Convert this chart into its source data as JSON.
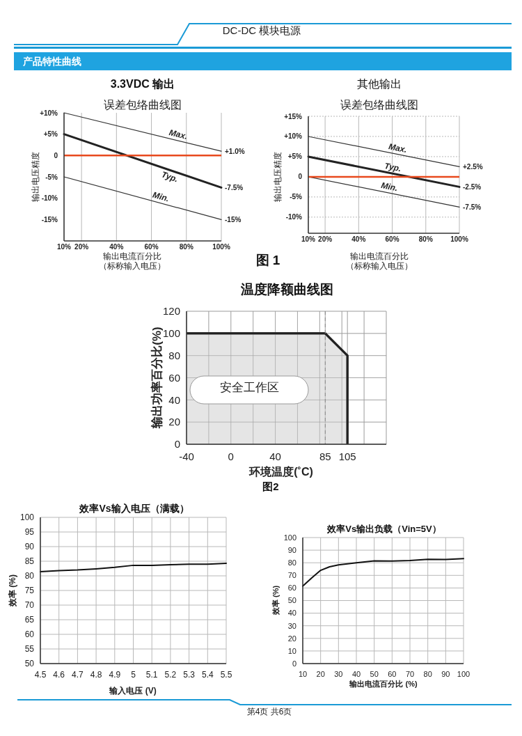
{
  "chart_data": [
    {
      "type": "line",
      "title": "3.3VDC 输出",
      "subtitle": "误差包络曲线图",
      "xlabel": "输出电流百分比",
      "ylabel": "输出电压精度",
      "annotations": [
        "DC-DC 模块电源",
        "产品特性曲线",
        "（标称输入电压）",
        "图 1"
      ],
      "xlim": [
        10,
        100
      ],
      "xticks": [
        {
          "value": 10,
          "label": "10%"
        },
        {
          "value": 20,
          "label": "20%"
        },
        {
          "value": 40,
          "label": "40%"
        },
        {
          "value": 60,
          "label": "60%"
        },
        {
          "value": 80,
          "label": "80%"
        },
        {
          "value": 100,
          "label": "100%"
        }
      ],
      "ylim": [
        -20,
        10
      ],
      "yticks": [
        {
          "value": 10,
          "label": "+10%"
        },
        {
          "value": 5,
          "label": "+5%"
        },
        0,
        {
          "value": -5,
          "label": "-5%"
        },
        {
          "value": -10,
          "label": "-10%"
        },
        {
          "value": -15,
          "label": "-15%"
        }
      ],
      "grid": "x",
      "marker": "none",
      "line_style": "solid",
      "ref_lines": [
        {
          "axis": "y",
          "value": 0,
          "color": "#e8491d"
        }
      ],
      "series": [
        {
          "name": "Max.",
          "color": "#333333",
          "x": [
            10,
            100
          ],
          "values": [
            10,
            1
          ],
          "value_labels": [
            null,
            "+1.0%"
          ]
        },
        {
          "name": "Typ.",
          "color": "#222222",
          "x": [
            10,
            100
          ],
          "values": [
            5,
            -7.5
          ],
          "value_labels": [
            null,
            "-7.5%"
          ]
        },
        {
          "name": "Min.",
          "color": "#333333",
          "x": [
            10,
            100
          ],
          "values": [
            -5,
            -15
          ],
          "value_labels": [
            null,
            "-15%"
          ]
        }
      ]
    },
    {
      "type": "line",
      "title": "其他输出",
      "subtitle": "误差包络曲线图",
      "xlabel": "输出电流百分比",
      "ylabel": "输出电压精度",
      "annotations": [
        "（标称输入电压）"
      ],
      "xlim": [
        10,
        100
      ],
      "xticks": [
        {
          "value": 10,
          "label": "10%"
        },
        {
          "value": 20,
          "label": "20%"
        },
        {
          "value": 40,
          "label": "40%"
        },
        {
          "value": 60,
          "label": "60%"
        },
        {
          "value": 80,
          "label": "80%"
        },
        {
          "value": 100,
          "label": "100%"
        }
      ],
      "ylim": [
        -14,
        15
      ],
      "yticks": [
        {
          "value": 15,
          "label": "+15%"
        },
        {
          "value": 10,
          "label": "+10%"
        },
        {
          "value": 5,
          "label": "+5%"
        },
        0,
        {
          "value": -5,
          "label": "-5%"
        },
        {
          "value": -10,
          "label": "-10%"
        }
      ],
      "grid": true,
      "marker": "none",
      "line_style": "solid",
      "ref_lines": [
        {
          "axis": "y",
          "value": 0,
          "color": "#e8491d"
        }
      ],
      "series": [
        {
          "name": "Max.",
          "color": "#333333",
          "x": [
            10,
            100
          ],
          "values": [
            10,
            2.5
          ],
          "value_labels": [
            null,
            "+2.5%"
          ]
        },
        {
          "name": "Typ.",
          "color": "#222222",
          "x": [
            10,
            100
          ],
          "values": [
            5,
            -2.5
          ],
          "value_labels": [
            null,
            "-2.5%"
          ]
        },
        {
          "name": "Min.",
          "color": "#333333",
          "x": [
            10,
            100
          ],
          "values": [
            0,
            -7.5
          ],
          "value_labels": [
            null,
            "-7.5%"
          ]
        }
      ]
    },
    {
      "type": "area",
      "title": "温度降额曲线图",
      "xlabel": "环境温度(˚C)",
      "ylabel": "输出功率百分比(%)",
      "annotations": [
        "安全工作区",
        "图2"
      ],
      "xlim": [
        -40,
        140
      ],
      "xticks": [
        -40,
        {
          "value": -20,
          "label": null
        },
        0,
        {
          "value": 20,
          "label": null
        },
        40,
        {
          "value": 60,
          "label": null
        },
        {
          "value": 80,
          "label": null
        },
        85,
        {
          "value": 100,
          "label": null
        },
        105,
        {
          "value": 120,
          "label": null
        },
        {
          "value": 140,
          "label": null
        }
      ],
      "ylim": [
        0,
        120
      ],
      "yticks": [
        0,
        20,
        40,
        60,
        80,
        100,
        120
      ],
      "grid": true,
      "ref_lines": [
        {
          "axis": "x",
          "value": 85,
          "color": "#888888",
          "line_style": "dashed"
        }
      ],
      "series": [
        {
          "color": "#dcdcdc",
          "x": [
            -40,
            85,
            105,
            105
          ],
          "values": [
            100,
            100,
            80,
            0
          ]
        }
      ]
    },
    {
      "type": "line",
      "title": "效率Vs输入电压（满载）",
      "xlabel": "输入电压 (V)",
      "ylabel": "效率 (%)",
      "x": [
        4.5,
        4.6,
        4.7,
        4.8,
        4.9,
        5.0,
        5.1,
        5.2,
        5.3,
        5.4,
        5.5
      ],
      "xlim": [
        4.5,
        5.5
      ],
      "xticks": [
        4.5,
        4.6,
        4.7,
        4.8,
        4.9,
        5,
        5.1,
        5.2,
        5.3,
        5.4,
        5.5
      ],
      "ylim": [
        50,
        100
      ],
      "yticks": [
        50,
        55,
        60,
        65,
        70,
        75,
        80,
        85,
        90,
        95,
        100
      ],
      "grid": true,
      "marker": "none",
      "line_style": "solid",
      "series": [
        {
          "color": "#111111",
          "values": [
            81.4,
            81.8,
            82.0,
            82.4,
            82.9,
            83.6,
            83.6,
            83.8,
            84.0,
            84.0,
            84.3
          ]
        }
      ]
    },
    {
      "type": "line",
      "title": "效率Vs输出负载（Vin=5V）",
      "xlabel": "输出电流百分比 (%)",
      "ylabel": "效率 (%)",
      "annotations": [
        "第4页 共6页"
      ],
      "x": [
        10,
        15,
        20,
        25,
        30,
        40,
        50,
        60,
        70,
        80,
        90,
        100
      ],
      "xlim": [
        10,
        100
      ],
      "xticks": [
        10,
        20,
        30,
        40,
        50,
        60,
        70,
        80,
        90,
        100
      ],
      "ylim": [
        0,
        100
      ],
      "yticks": [
        0,
        10,
        20,
        30,
        40,
        50,
        60,
        70,
        80,
        90,
        100
      ],
      "grid": true,
      "marker": "none",
      "line_style": "solid",
      "series": [
        {
          "color": "#111111",
          "values": [
            61.5,
            68,
            74,
            76.8,
            78.3,
            80,
            81.5,
            81.3,
            81.8,
            82.7,
            82.6,
            83.3
          ]
        }
      ]
    }
  ]
}
